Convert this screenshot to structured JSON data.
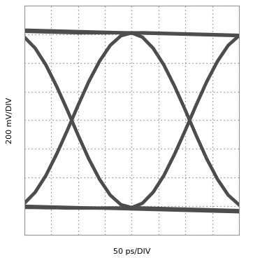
{
  "chart_data": {
    "type": "line",
    "x_label": "50 ps/DIV",
    "y_label": "200 mV/DIV",
    "x": [
      0,
      20,
      40,
      60,
      80,
      100,
      120,
      140,
      160,
      180,
      200,
      220,
      240,
      260,
      280,
      300,
      320,
      340,
      360,
      380,
      400
    ],
    "xlim": [
      0,
      400
    ],
    "ylim": [
      -800,
      800
    ],
    "xticks": [
      0,
      50,
      100,
      150,
      200,
      250,
      300,
      350,
      400
    ],
    "yticks": [
      -800,
      -600,
      -400,
      -200,
      0,
      200,
      400,
      600,
      800
    ],
    "grid": true,
    "tick_labels": false,
    "series": [
      {
        "color": "#4d4d4d",
        "values": [
          630,
          628,
          626,
          624,
          622,
          620,
          618,
          616,
          614,
          612,
          610,
          608,
          606,
          604,
          602,
          600,
          598,
          596,
          594,
          592,
          590
        ]
      },
      {
        "color": "#4d4d4d",
        "values": [
          -600,
          -602,
          -604,
          -606,
          -608,
          -610,
          -612,
          -614,
          -616,
          -618,
          -620,
          -622,
          -624,
          -626,
          -628,
          -630,
          -632,
          -634,
          -636,
          -638,
          -640
        ]
      },
      {
        "color": "#4d4d4d",
        "values": [
          -580,
          -503,
          -386,
          -237,
          -70,
          104,
          270,
          412,
          523,
          590,
          610,
          580,
          503,
          386,
          237,
          70,
          -104,
          -270,
          -412,
          -523,
          -590
        ]
      },
      {
        "color": "#4d4d4d",
        "values": [
          580,
          503,
          386,
          237,
          70,
          -104,
          -270,
          -412,
          -523,
          -590,
          -610,
          -580,
          -503,
          -386,
          -237,
          -70,
          104,
          270,
          412,
          523,
          590
        ]
      },
      {
        "color": "#4d4d4d",
        "values": [
          -580,
          -503,
          -386,
          -237,
          -70,
          104,
          270,
          412,
          523,
          590,
          610,
          612,
          610,
          608,
          606,
          604,
          602,
          600,
          598,
          596,
          594
        ]
      },
      {
        "color": "#4d4d4d",
        "values": [
          580,
          503,
          386,
          237,
          70,
          -104,
          -270,
          -412,
          -523,
          -590,
          -610,
          -612,
          -614,
          -616,
          -618,
          -620,
          -622,
          -624,
          -626,
          -628,
          -630
        ]
      },
      {
        "color": "#4d4d4d",
        "values": [
          620,
          618,
          616,
          614,
          612,
          610,
          610,
          610,
          610,
          610,
          610,
          580,
          503,
          386,
          237,
          70,
          -104,
          -270,
          -412,
          -523,
          -590
        ]
      },
      {
        "color": "#4d4d4d",
        "values": [
          -610,
          -610,
          -612,
          -612,
          -614,
          -614,
          -614,
          -614,
          -612,
          -612,
          -610,
          -580,
          -503,
          -386,
          -237,
          -70,
          104,
          270,
          412,
          523,
          590
        ]
      }
    ]
  }
}
